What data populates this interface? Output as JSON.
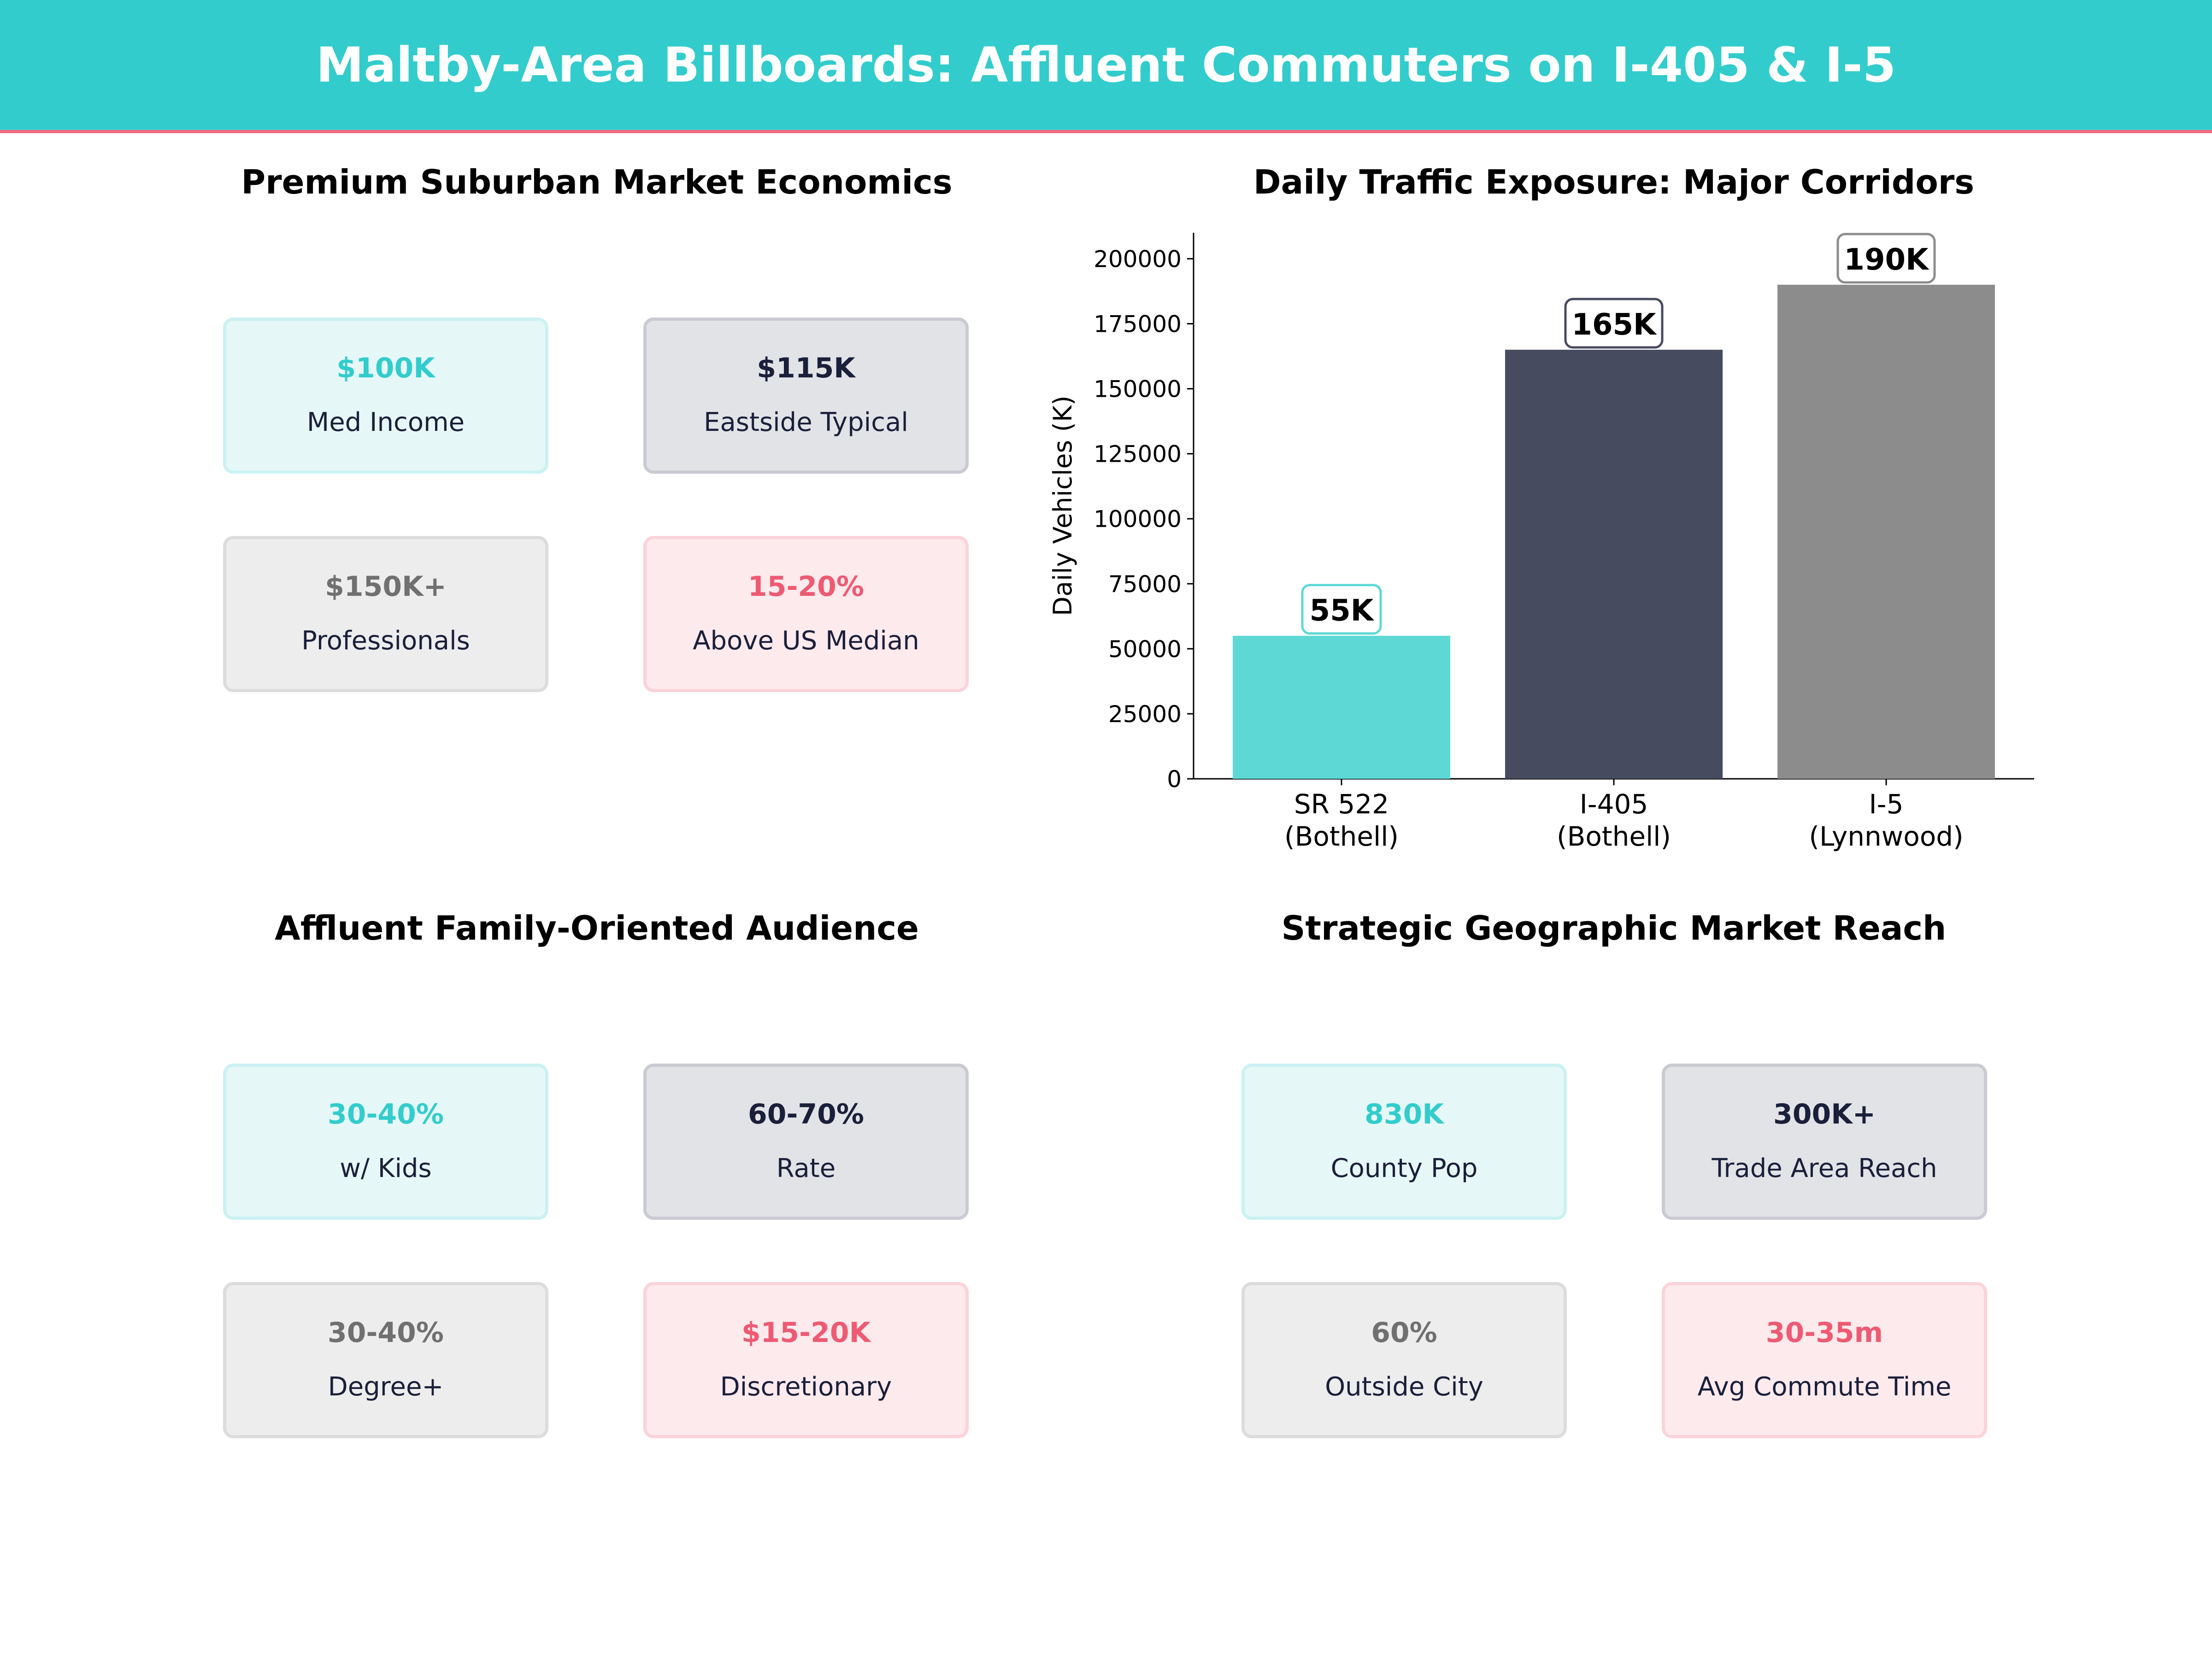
{
  "header": {
    "title": "Maltby-Area Billboards: Affluent Commuters on I-405 & I-5"
  },
  "panels": [
    {
      "title": "Premium Suburban Market Economics",
      "cards": [
        {
          "value": "$100K",
          "label": "Med Income"
        },
        {
          "value": "$115K",
          "label": "Eastside Typical"
        },
        {
          "value": "$150K+",
          "label": "Professionals"
        },
        {
          "value": "15-20%",
          "label": "Above US Median"
        }
      ]
    },
    {
      "title": "Affluent Family-Oriented Audience",
      "cards": [
        {
          "value": "30-40%",
          "label": "w/ Kids"
        },
        {
          "value": "60-70%",
          "label": "Rate"
        },
        {
          "value": "30-40%",
          "label": "Degree+"
        },
        {
          "value": "$15-20K",
          "label": "Discretionary"
        }
      ]
    },
    {
      "title": "Strategic Geographic Market Reach",
      "cards": [
        {
          "value": "830K",
          "label": "County Pop"
        },
        {
          "value": "300K+",
          "label": "Trade Area Reach"
        },
        {
          "value": "60%",
          "label": "Outside City"
        },
        {
          "value": "30-35m",
          "label": "Avg Commute Time"
        }
      ]
    }
  ],
  "colors": {
    "accent": "#33CCCC",
    "dark": "#1A1F3A",
    "grey": "#707070",
    "pink": "#EE5A72"
  },
  "chart_data": {
    "type": "bar",
    "title": "Daily Traffic Exposure: Major Corridors",
    "xlabel": "",
    "ylabel": "Daily Vehicles (K)",
    "categories": [
      "SR 522\n(Bothell)",
      "I-405\n(Bothell)",
      "I-5\n(Lynnwood)"
    ],
    "values": [
      55000,
      165000,
      190000
    ],
    "data_labels": [
      "55K",
      "165K",
      "190K"
    ],
    "colors": [
      "#5DD8D5",
      "#464B5F",
      "#8C8C8C"
    ],
    "ylim": [
      0,
      210000
    ],
    "yticks": [
      0,
      25000,
      50000,
      75000,
      100000,
      125000,
      150000,
      175000,
      200000
    ],
    "grid": false
  }
}
